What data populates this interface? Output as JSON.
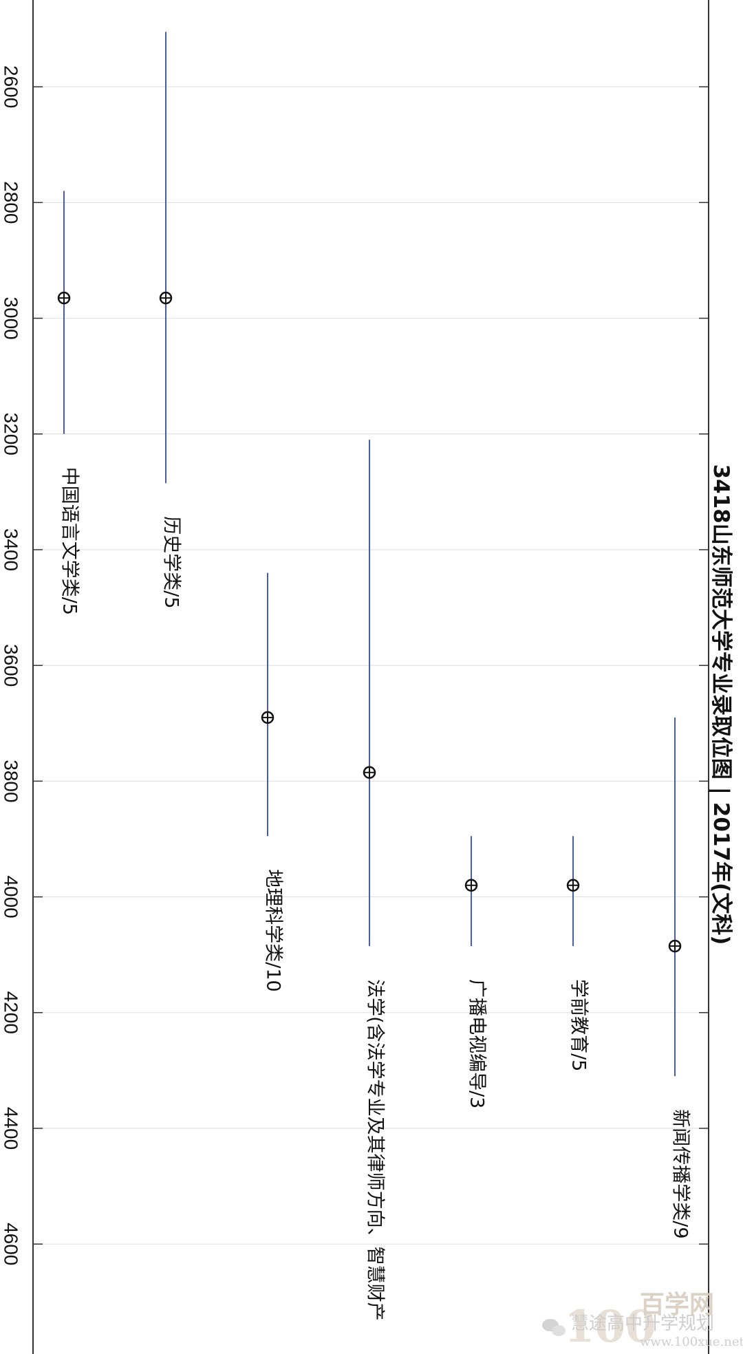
{
  "chart_data": {
    "type": "range",
    "title": "3418山东师范大学专业录取位图 | 2017年(文科)",
    "axis": {
      "range": [
        2450,
        4790
      ],
      "ticks": [
        2600,
        2800,
        3000,
        3200,
        3400,
        3600,
        3800,
        4000,
        4200,
        4400,
        4600
      ],
      "tick_labels": [
        "2600",
        "2800",
        "3000",
        "3200",
        "3400",
        "3600",
        "3800",
        "4000",
        "4200",
        "4400",
        "4600"
      ],
      "grid": true
    },
    "categories": [
      {
        "label": "中国语言文学类/5",
        "min": 2780,
        "max": 3200,
        "mid": 2965
      },
      {
        "label": "历史学类/5",
        "min": 2505,
        "max": 3285,
        "mid": 2965
      },
      {
        "label": "地理科学类/10",
        "min": 3440,
        "max": 3895,
        "mid": 3690
      },
      {
        "label": "法学(含法学专业及其律师方向、智慧财产",
        "min": 3210,
        "max": 4085,
        "mid": 3785
      },
      {
        "label": "广播电视编导/3",
        "min": 3895,
        "max": 4085,
        "mid": 3980
      },
      {
        "label": "学前教育/5",
        "min": 3895,
        "max": 4085,
        "mid": 3980
      },
      {
        "label": "新闻传播学类/9",
        "min": 3690,
        "max": 4310,
        "mid": 4085
      }
    ],
    "colors": {
      "line": "#4a5d9a",
      "marker": "#111111",
      "grid": "#dddddd",
      "axis": "#333333"
    }
  },
  "watermark": {
    "brand": "百学网",
    "number": "100",
    "text": "慧途高中升学规划",
    "url": "www.100xue.net"
  }
}
